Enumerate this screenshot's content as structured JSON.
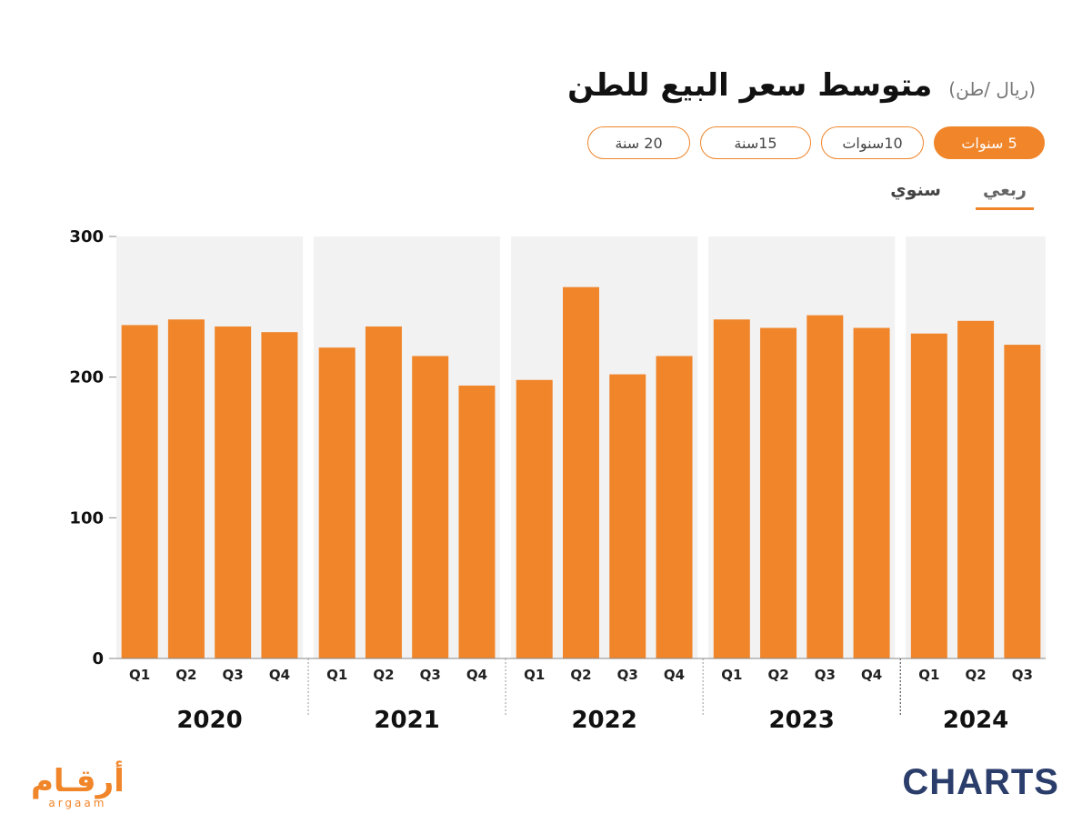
{
  "header": {
    "title": "متوسط سعر البيع للطن",
    "unit": "(ريال /طن)"
  },
  "range_pills": [
    {
      "label": "5 سنوات",
      "active": true
    },
    {
      "label": "10سنوات",
      "active": false
    },
    {
      "label": "15سنة",
      "active": false
    },
    {
      "label": "20 سنة",
      "active": false
    }
  ],
  "period_toggles": [
    {
      "label": "سنوي",
      "active": false
    },
    {
      "label": "ربعي",
      "active": true
    }
  ],
  "colors": {
    "bar": "#f0852a",
    "accent": "#f0852a",
    "panel_bg": "#f2f2f2",
    "brand_navy": "#2b3d6b"
  },
  "chart_data": {
    "type": "bar",
    "ylim": [
      0,
      300
    ],
    "yticks": [
      0,
      100,
      200,
      300
    ],
    "groups": [
      {
        "year": "2020",
        "quarters": [
          "Q1",
          "Q2",
          "Q3",
          "Q4"
        ],
        "values": [
          237,
          241,
          236,
          232
        ]
      },
      {
        "year": "2021",
        "quarters": [
          "Q1",
          "Q2",
          "Q3",
          "Q4"
        ],
        "values": [
          221,
          236,
          215,
          194
        ]
      },
      {
        "year": "2022",
        "quarters": [
          "Q1",
          "Q2",
          "Q3",
          "Q4"
        ],
        "values": [
          198,
          264,
          202,
          215
        ]
      },
      {
        "year": "2023",
        "quarters": [
          "Q1",
          "Q2",
          "Q3",
          "Q4"
        ],
        "values": [
          241,
          235,
          244,
          235
        ]
      },
      {
        "year": "2024",
        "quarters": [
          "Q1",
          "Q2",
          "Q3"
        ],
        "values": [
          231,
          240,
          223
        ]
      }
    ]
  },
  "branding": {
    "left_logo_ar": "أرقـام",
    "left_logo_en": "argaam",
    "right_logo": "CHARTS"
  }
}
